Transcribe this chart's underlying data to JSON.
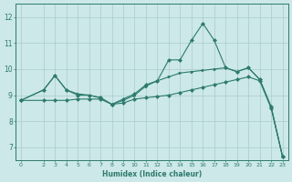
{
  "xlabel": "Humidex (Indice chaleur)",
  "bg_color": "#cce8e8",
  "line_color": "#2d7a6e",
  "grid_color_major": "#aacccc",
  "grid_color_minor": "#bbdddd",
  "xlim": [
    -0.5,
    23.5
  ],
  "ylim": [
    6.5,
    12.5
  ],
  "xticks": [
    0,
    2,
    3,
    4,
    5,
    6,
    7,
    8,
    9,
    10,
    11,
    12,
    13,
    14,
    15,
    16,
    17,
    18,
    19,
    20,
    21,
    22,
    23
  ],
  "yticks": [
    7,
    8,
    9,
    10,
    11,
    12
  ],
  "series": [
    {
      "x": [
        0,
        2,
        3,
        4,
        5,
        6,
        7,
        8,
        9,
        10,
        11,
        12,
        13,
        14,
        15,
        16,
        17,
        18,
        19,
        20,
        21,
        22,
        23
      ],
      "y": [
        8.8,
        9.2,
        9.75,
        9.2,
        9.0,
        9.0,
        8.9,
        8.65,
        8.85,
        9.05,
        9.4,
        9.55,
        10.35,
        10.35,
        11.1,
        11.75,
        11.1,
        10.05,
        9.9,
        10.05,
        9.6,
        8.55,
        6.65
      ]
    },
    {
      "x": [
        0,
        2,
        3,
        4,
        5,
        6,
        7,
        8,
        9,
        10,
        11,
        12,
        13,
        14,
        15,
        16,
        17,
        18,
        19,
        20,
        21,
        22,
        23
      ],
      "y": [
        8.8,
        9.2,
        9.75,
        9.2,
        9.05,
        9.0,
        8.9,
        8.65,
        8.8,
        9.0,
        9.35,
        9.55,
        9.7,
        9.85,
        9.9,
        9.95,
        10.0,
        10.05,
        9.9,
        10.05,
        9.6,
        8.55,
        6.65
      ]
    },
    {
      "x": [
        0,
        2,
        3,
        4,
        5,
        6,
        7,
        8,
        9,
        10,
        11,
        12,
        13,
        14,
        15,
        16,
        17,
        18,
        19,
        20,
        21,
        22,
        23
      ],
      "y": [
        8.8,
        8.8,
        8.8,
        8.8,
        8.85,
        8.85,
        8.85,
        8.65,
        8.7,
        8.85,
        8.9,
        8.95,
        9.0,
        9.1,
        9.2,
        9.3,
        9.4,
        9.5,
        9.6,
        9.7,
        9.55,
        8.5,
        6.65
      ]
    }
  ]
}
